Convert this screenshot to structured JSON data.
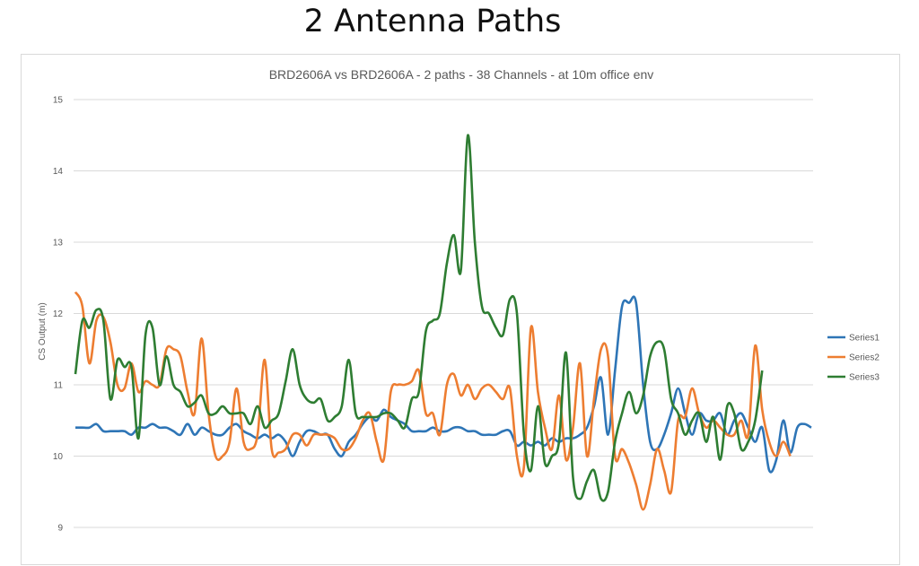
{
  "slide": {
    "title": "2 Antenna Paths"
  },
  "chart_data": {
    "type": "line",
    "title": "BRD2606A vs BRD2606A - 2 paths - 38 Channels - at 10m office env",
    "xlabel": "",
    "ylabel": "CS Output (m)",
    "ylim": [
      9,
      15
    ],
    "yticks": [
      9,
      10,
      11,
      12,
      13,
      14,
      15
    ],
    "grid": true,
    "legend_position": "right",
    "series": [
      {
        "name": "Series1",
        "color": "#2e75b6",
        "values": [
          10.4,
          10.4,
          10.4,
          10.45,
          10.35,
          10.35,
          10.35,
          10.35,
          10.3,
          10.4,
          10.4,
          10.45,
          10.4,
          10.4,
          10.35,
          10.3,
          10.45,
          10.3,
          10.4,
          10.35,
          10.3,
          10.3,
          10.4,
          10.45,
          10.35,
          10.3,
          10.25,
          10.3,
          10.25,
          10.3,
          10.2,
          10.0,
          10.2,
          10.35,
          10.35,
          10.3,
          10.3,
          10.1,
          10.0,
          10.2,
          10.3,
          10.45,
          10.55,
          10.5,
          10.65,
          10.55,
          10.5,
          10.45,
          10.35,
          10.35,
          10.35,
          10.4,
          10.35,
          10.35,
          10.4,
          10.4,
          10.35,
          10.35,
          10.3,
          10.3,
          10.3,
          10.35,
          10.35,
          10.15,
          10.2,
          10.15,
          10.2,
          10.15,
          10.25,
          10.2,
          10.25,
          10.25,
          10.3,
          10.4,
          10.7,
          11.1,
          10.3,
          11.2,
          12.1,
          12.15,
          12.15,
          11.0,
          10.2,
          10.1,
          10.3,
          10.6,
          10.95,
          10.6,
          10.3,
          10.6,
          10.5,
          10.5,
          10.6,
          10.3,
          10.5,
          10.6,
          10.4,
          10.2,
          10.4,
          9.8,
          9.95,
          10.5,
          10.05,
          10.4,
          10.45,
          10.4
        ]
      },
      {
        "name": "Series2",
        "color": "#ed7d31",
        "values": [
          12.3,
          12.1,
          11.3,
          11.9,
          11.95,
          11.6,
          11.0,
          10.95,
          11.3,
          10.9,
          11.05,
          11.0,
          11.0,
          11.5,
          11.5,
          11.4,
          10.9,
          10.6,
          11.65,
          10.6,
          10.0,
          10.0,
          10.2,
          10.95,
          10.2,
          10.1,
          10.3,
          11.35,
          10.1,
          10.05,
          10.1,
          10.3,
          10.3,
          10.15,
          10.3,
          10.3,
          10.3,
          10.25,
          10.1,
          10.1,
          10.25,
          10.5,
          10.6,
          10.2,
          9.95,
          10.9,
          11.0,
          11.0,
          11.05,
          11.2,
          10.6,
          10.6,
          10.3,
          11.0,
          11.15,
          10.85,
          11.0,
          10.8,
          10.95,
          11.0,
          10.9,
          10.8,
          10.95,
          10.0,
          9.85,
          11.8,
          10.9,
          10.4,
          10.1,
          10.85,
          9.95,
          10.4,
          11.3,
          10.0,
          10.8,
          11.5,
          11.4,
          10.0,
          10.1,
          9.9,
          9.6,
          9.25,
          9.6,
          10.1,
          9.8,
          9.5,
          10.5,
          10.55,
          10.95,
          10.6,
          10.4,
          10.5,
          10.4,
          10.3,
          10.3,
          10.5,
          10.3,
          11.55,
          10.65,
          10.2,
          10.0,
          10.2,
          10.0
        ]
      },
      {
        "name": "Series3",
        "color": "#2e7d32",
        "values": [
          11.15,
          11.9,
          11.8,
          12.05,
          11.9,
          10.8,
          11.35,
          11.25,
          11.25,
          10.25,
          11.7,
          11.8,
          11.0,
          11.4,
          11.0,
          10.9,
          10.7,
          10.75,
          10.85,
          10.6,
          10.6,
          10.7,
          10.6,
          10.6,
          10.6,
          10.45,
          10.7,
          10.4,
          10.5,
          10.6,
          11.05,
          11.5,
          11.0,
          10.8,
          10.75,
          10.8,
          10.5,
          10.55,
          10.7,
          11.35,
          10.6,
          10.55,
          10.55,
          10.55,
          10.6,
          10.6,
          10.5,
          10.4,
          10.8,
          10.9,
          11.75,
          11.9,
          12.0,
          12.7,
          13.1,
          12.6,
          14.5,
          13.0,
          12.1,
          12.0,
          11.8,
          11.7,
          12.2,
          12.0,
          10.3,
          9.8,
          10.7,
          9.9,
          10.0,
          10.2,
          11.45,
          9.7,
          9.4,
          9.65,
          9.8,
          9.4,
          9.5,
          10.2,
          10.6,
          10.9,
          10.6,
          10.85,
          11.4,
          11.6,
          11.5,
          10.8,
          10.6,
          10.3,
          10.5,
          10.6,
          10.2,
          10.55,
          9.95,
          10.7,
          10.6,
          10.1,
          10.2,
          10.5,
          11.2
        ]
      }
    ]
  }
}
